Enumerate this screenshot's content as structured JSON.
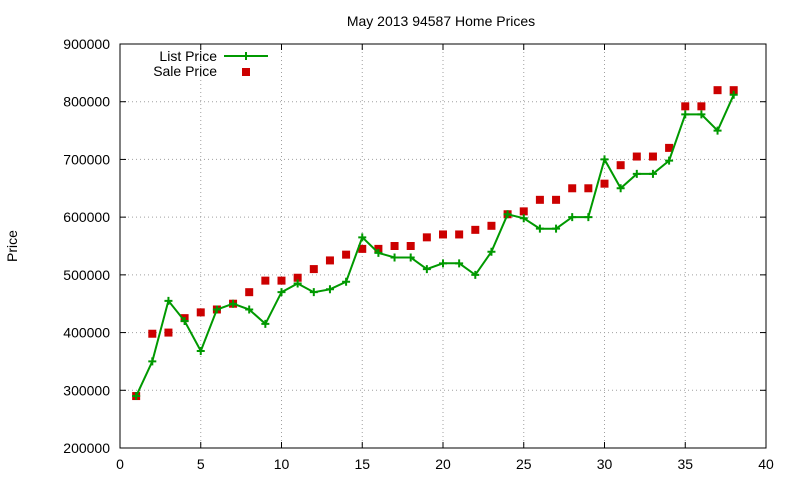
{
  "chart_data": {
    "type": "line",
    "title": "May 2013 94587 Home Prices",
    "xlabel": "",
    "ylabel": "Price",
    "xlim": [
      0,
      40
    ],
    "ylim": [
      200000,
      900000
    ],
    "x_ticks": [
      0,
      5,
      10,
      15,
      20,
      25,
      30,
      35,
      40
    ],
    "y_ticks": [
      200000,
      300000,
      400000,
      500000,
      600000,
      700000,
      800000,
      900000
    ],
    "grid": true,
    "legend_position": "top-left",
    "x": [
      1,
      2,
      3,
      4,
      5,
      6,
      7,
      8,
      9,
      10,
      11,
      12,
      13,
      14,
      15,
      16,
      17,
      18,
      19,
      20,
      21,
      22,
      23,
      24,
      25,
      26,
      27,
      28,
      29,
      30,
      31,
      32,
      33,
      34,
      35,
      36,
      37,
      38
    ],
    "series": [
      {
        "name": "List Price",
        "style": "line+cross",
        "color": "#009900",
        "values": [
          290000,
          350000,
          455000,
          420000,
          368000,
          440000,
          450000,
          440000,
          415000,
          470000,
          485000,
          470000,
          475000,
          488000,
          565000,
          538000,
          530000,
          530000,
          510000,
          520000,
          520000,
          500000,
          540000,
          605000,
          598000,
          580000,
          580000,
          600000,
          600000,
          700000,
          650000,
          675000,
          675000,
          698000,
          778000,
          778000,
          750000,
          812000
        ]
      },
      {
        "name": "Sale Price",
        "style": "square-marker",
        "color": "#cc0000",
        "values": [
          290000,
          398000,
          400000,
          425000,
          435000,
          440000,
          450000,
          470000,
          490000,
          490000,
          495000,
          510000,
          525000,
          535000,
          545000,
          545000,
          550000,
          550000,
          565000,
          570000,
          570000,
          578000,
          585000,
          605000,
          610000,
          630000,
          630000,
          650000,
          650000,
          658000,
          690000,
          705000,
          705000,
          720000,
          792000,
          792000,
          820000,
          820000
        ]
      }
    ]
  }
}
